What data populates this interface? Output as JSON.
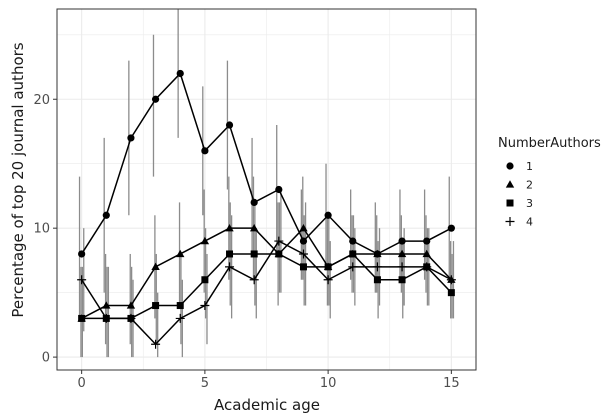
{
  "chart_data": {
    "type": "line",
    "xlabel": "Academic age",
    "ylabel": "Percentage of top 20 journal authors",
    "xlim": [
      -1,
      16
    ],
    "ylim": [
      -1,
      27
    ],
    "x_ticks": [
      0,
      5,
      10,
      15
    ],
    "y_ticks": [
      0,
      10,
      20
    ],
    "grid": true,
    "legend_title": "NumberAuthors",
    "legend_position": "right",
    "colors": {
      "series": "#000000",
      "error_bar": "#8c8c8c",
      "grid": "#ebebeb",
      "axis": "#333333"
    },
    "series": [
      {
        "name": "1",
        "marker": "circle",
        "x": [
          0,
          1,
          2,
          3,
          4,
          5,
          6,
          7,
          8,
          9,
          10,
          11,
          12,
          13,
          14,
          15
        ],
        "y": [
          8,
          11,
          17,
          20,
          22,
          16,
          18,
          12,
          13,
          9,
          11,
          9,
          8,
          9,
          9,
          10
        ],
        "low": [
          3,
          5,
          11,
          14,
          17,
          11,
          13,
          8,
          8,
          6,
          7,
          6,
          5,
          6,
          6,
          6
        ],
        "high": [
          14,
          17,
          23,
          25,
          27,
          21,
          23,
          17,
          18,
          13,
          15,
          13,
          12,
          13,
          13,
          14
        ]
      },
      {
        "name": "2",
        "marker": "triangle",
        "x": [
          0,
          1,
          2,
          3,
          4,
          5,
          6,
          7,
          8,
          9,
          10,
          11,
          12,
          13,
          14,
          15
        ],
        "y": [
          3,
          4,
          4,
          7,
          8,
          9,
          10,
          10,
          8,
          10,
          7,
          8,
          8,
          8,
          8,
          6
        ],
        "low": [
          0,
          1,
          1,
          3,
          4,
          5,
          6,
          6,
          4,
          6,
          4,
          5,
          5,
          5,
          5,
          3
        ],
        "high": [
          7,
          8,
          8,
          11,
          12,
          13,
          14,
          14,
          12,
          14,
          11,
          11,
          11,
          11,
          11,
          9
        ]
      },
      {
        "name": "3",
        "marker": "square",
        "x": [
          0,
          1,
          2,
          3,
          4,
          5,
          6,
          7,
          8,
          9,
          10,
          11,
          12,
          13,
          14,
          15
        ],
        "y": [
          3,
          3,
          3,
          4,
          4,
          6,
          8,
          8,
          8,
          7,
          7,
          8,
          6,
          6,
          7,
          5
        ],
        "low": [
          0,
          0,
          0,
          1,
          1,
          3,
          4,
          4,
          5,
          4,
          4,
          5,
          3,
          3,
          4,
          3
        ],
        "high": [
          7,
          7,
          7,
          8,
          8,
          10,
          12,
          12,
          12,
          11,
          11,
          11,
          9,
          9,
          10,
          8
        ]
      },
      {
        "name": "4",
        "marker": "plus",
        "x": [
          0,
          1,
          2,
          3,
          4,
          5,
          6,
          7,
          8,
          9,
          10,
          11,
          12,
          13,
          14,
          15
        ],
        "y": [
          6,
          3,
          3,
          1,
          3,
          4,
          7,
          6,
          9,
          8,
          6,
          7,
          7,
          7,
          7,
          6
        ],
        "low": [
          2,
          0,
          0,
          0,
          0,
          1,
          3,
          3,
          5,
          4,
          3,
          4,
          4,
          4,
          4,
          3
        ],
        "high": [
          10,
          7,
          6,
          5,
          6,
          8,
          11,
          10,
          13,
          12,
          9,
          10,
          10,
          10,
          10,
          9
        ]
      }
    ]
  }
}
